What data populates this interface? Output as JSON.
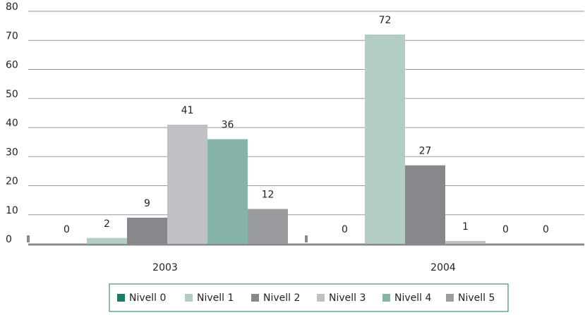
{
  "chart_data": {
    "type": "bar",
    "categories": [
      "2003",
      "2004"
    ],
    "series": [
      {
        "name": "Nivell 0",
        "color": "#1b7a68",
        "values": [
          0,
          0
        ]
      },
      {
        "name": "Nivell 1",
        "color": "#b2cdc6",
        "values": [
          2,
          72
        ]
      },
      {
        "name": "Nivell 2",
        "color": "#87888b",
        "values": [
          9,
          27
        ]
      },
      {
        "name": "Nivell 3",
        "color": "#c0c1c5",
        "values": [
          41,
          1
        ]
      },
      {
        "name": "Nivell 4",
        "color": "#86b4a8",
        "values": [
          36,
          0
        ]
      },
      {
        "name": "Nivell 5",
        "color": "#9b9c9f",
        "values": [
          12,
          0
        ]
      }
    ],
    "ylim": [
      0,
      80
    ],
    "yticks": [
      0,
      10,
      20,
      30,
      40,
      50,
      60,
      70,
      80
    ],
    "grid": true,
    "legend": "bottom"
  }
}
